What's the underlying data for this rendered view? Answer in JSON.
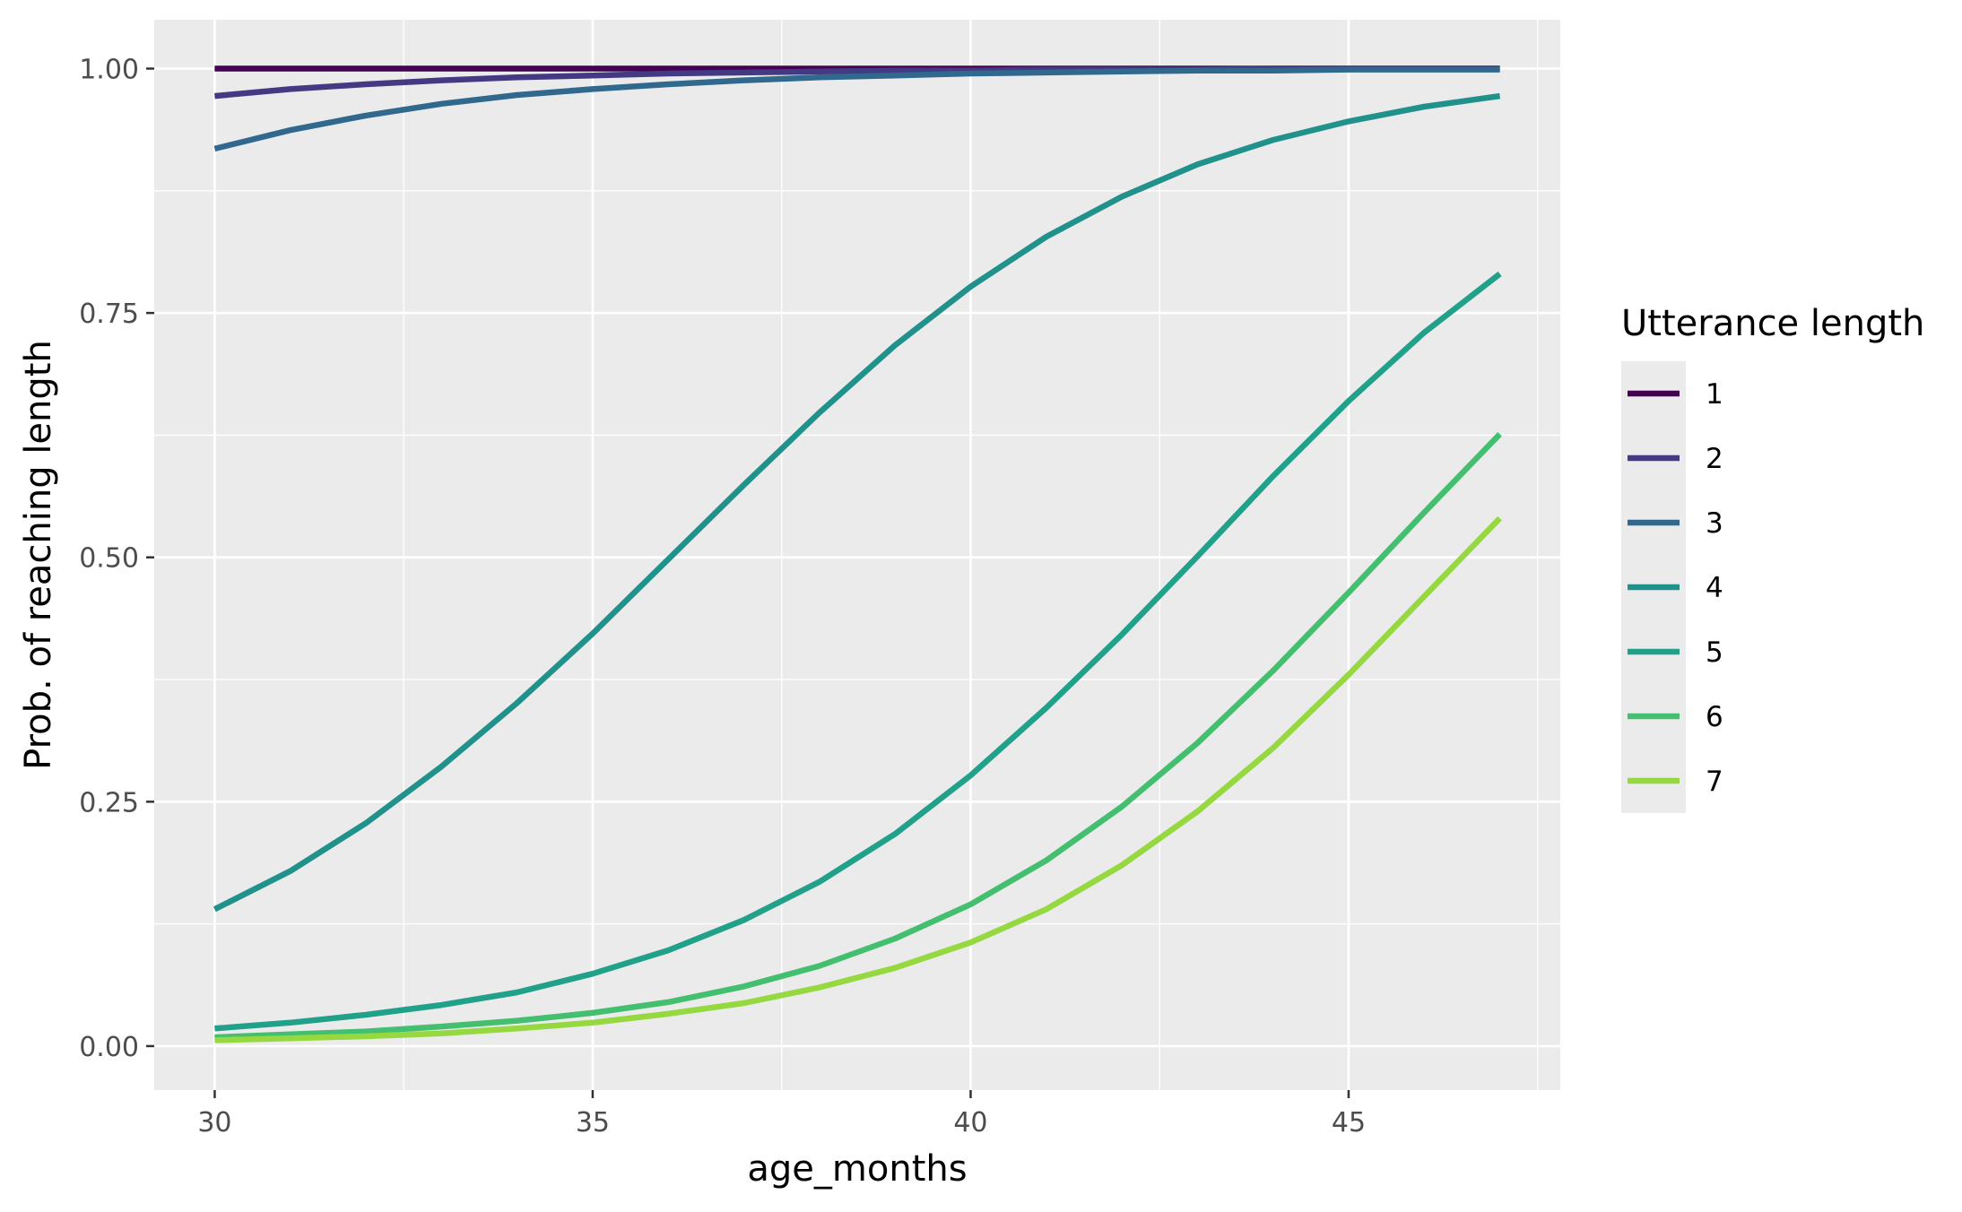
{
  "chart_data": {
    "type": "line",
    "title": "",
    "xlabel": "age_months",
    "ylabel": "Prob. of reaching length",
    "xlim": [
      29.2,
      47.8
    ],
    "ylim": [
      -0.045,
      1.05
    ],
    "x_ticks": [
      30,
      35,
      40,
      45
    ],
    "x_tick_labels": [
      "30",
      "35",
      "40",
      "45"
    ],
    "x_minor": [
      32.5,
      37.5,
      42.5,
      47.5
    ],
    "y_ticks": [
      0,
      0.25,
      0.5,
      0.75,
      1.0
    ],
    "y_tick_labels": [
      "0.00",
      "0.25",
      "0.50",
      "0.75",
      "1.00"
    ],
    "y_minor": [
      0.125,
      0.375,
      0.625,
      0.875
    ],
    "grid": true,
    "legend": {
      "title": "Utterance length",
      "position": "right"
    },
    "x": [
      30,
      31,
      32,
      33,
      34,
      35,
      36,
      37,
      38,
      39,
      40,
      41,
      42,
      43,
      44,
      45,
      46,
      47
    ],
    "series": [
      {
        "name": "1",
        "color": "#440154",
        "values": [
          1.0,
          1.0,
          1.0,
          1.0,
          1.0,
          1.0,
          1.0,
          1.0,
          1.0,
          1.0,
          1.0,
          1.0,
          1.0,
          1.0,
          1.0,
          1.0,
          1.0,
          1.0
        ]
      },
      {
        "name": "2",
        "color": "#443983",
        "values": [
          0.972,
          0.979,
          0.984,
          0.988,
          0.991,
          0.993,
          0.995,
          0.996,
          0.997,
          0.998,
          0.998,
          0.999,
          0.999,
          0.999,
          1.0,
          1.0,
          1.0,
          1.0
        ]
      },
      {
        "name": "3",
        "color": "#31688e",
        "values": [
          0.918,
          0.937,
          0.952,
          0.964,
          0.973,
          0.979,
          0.984,
          0.988,
          0.991,
          0.993,
          0.995,
          0.996,
          0.997,
          0.998,
          0.998,
          0.999,
          0.999,
          0.999
        ]
      },
      {
        "name": "4",
        "color": "#21918c",
        "values": [
          0.14,
          0.179,
          0.228,
          0.286,
          0.351,
          0.422,
          0.498,
          0.574,
          0.648,
          0.717,
          0.777,
          0.828,
          0.869,
          0.902,
          0.927,
          0.946,
          0.961,
          0.972
        ]
      },
      {
        "name": "5",
        "color": "#21a08a",
        "values": [
          0.018,
          0.024,
          0.032,
          0.042,
          0.055,
          0.074,
          0.098,
          0.129,
          0.168,
          0.217,
          0.277,
          0.346,
          0.421,
          0.501,
          0.583,
          0.66,
          0.73,
          0.79
        ]
      },
      {
        "name": "6",
        "color": "#44bf70",
        "values": [
          0.009,
          0.012,
          0.015,
          0.02,
          0.026,
          0.034,
          0.045,
          0.061,
          0.082,
          0.11,
          0.145,
          0.19,
          0.245,
          0.31,
          0.384,
          0.464,
          0.546,
          0.626
        ]
      },
      {
        "name": "7",
        "color": "#95d840",
        "values": [
          0.006,
          0.008,
          0.01,
          0.013,
          0.018,
          0.024,
          0.033,
          0.044,
          0.06,
          0.08,
          0.106,
          0.14,
          0.185,
          0.24,
          0.305,
          0.38,
          0.46,
          0.54
        ]
      }
    ]
  }
}
